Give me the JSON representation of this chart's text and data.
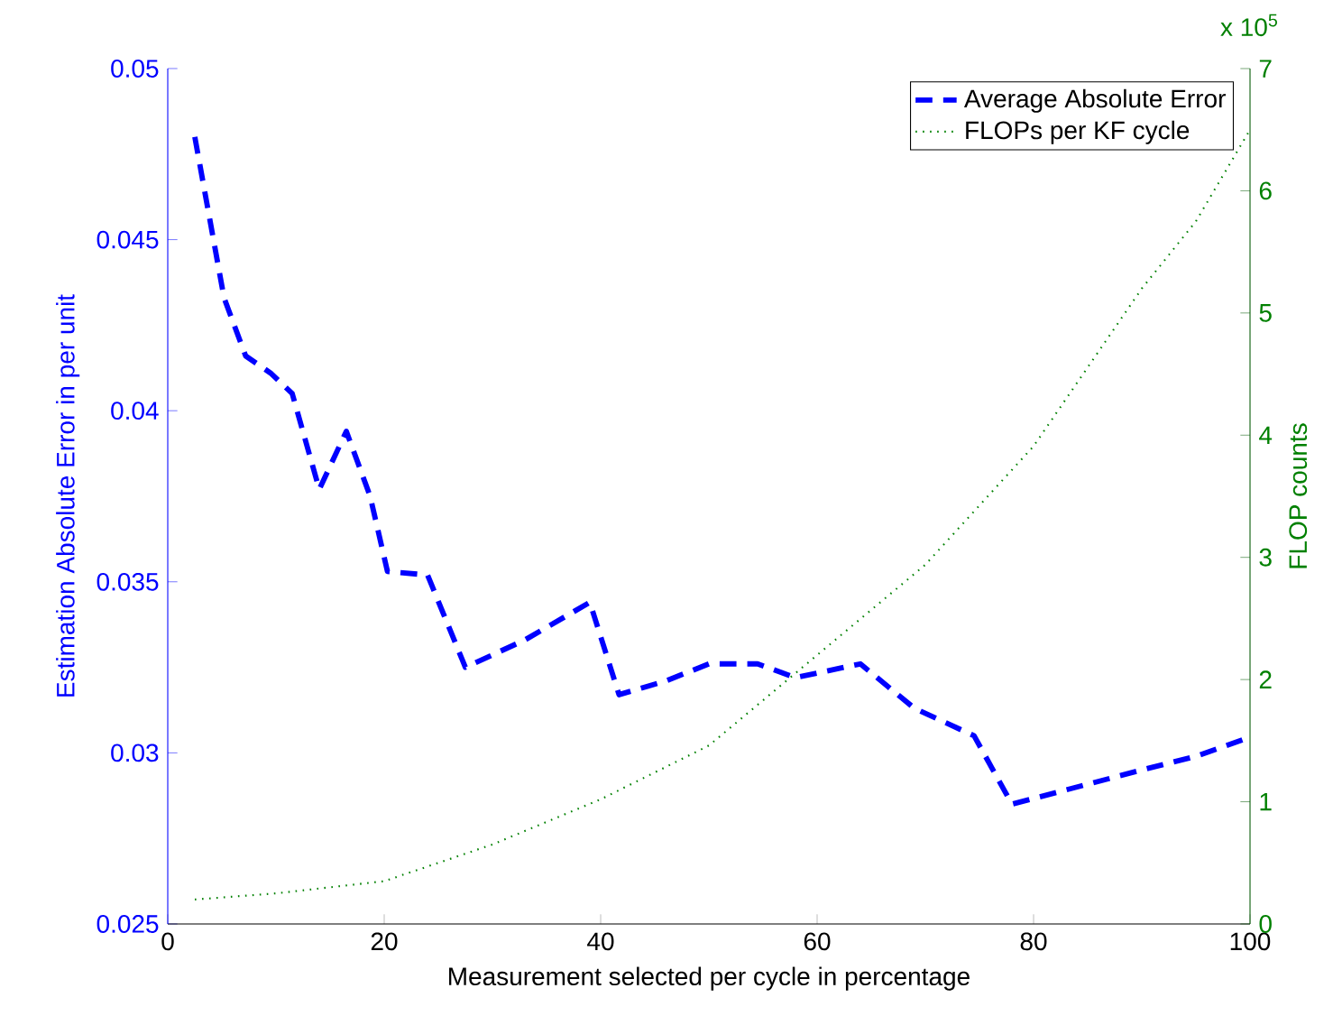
{
  "chart_data": {
    "type": "line",
    "xlabel": "Measurement selected per cycle in percentage",
    "ylabel": "Estimation Absolute Error in per unit",
    "y2label": "FLOP counts",
    "annotations": [
      "x 10$^{5}$"
    ],
    "xlim": [
      0,
      100
    ],
    "xticks": [
      0,
      20,
      40,
      60,
      80,
      100
    ],
    "ylim": [
      0.025,
      0.05
    ],
    "yticks": [
      0.025,
      0.03,
      0.035,
      0.04,
      0.045,
      0.05
    ],
    "y2lim": [
      0,
      7
    ],
    "y2ticks": [
      0,
      1,
      2,
      3,
      4,
      5,
      6,
      7
    ],
    "legend": "top right",
    "marker": "none",
    "grid": false,
    "series": [
      {
        "name": "Average Absolute Error",
        "color": "#0000ff",
        "line_style": "dashed",
        "x": [
          2.5,
          5.2,
          7.2,
          9.5,
          11.5,
          14,
          16.5,
          18.7,
          20.3,
          24,
          27.5,
          33,
          39,
          41.7,
          46,
          50,
          54.5,
          58,
          64,
          69,
          74.5,
          78,
          84,
          90,
          95,
          99.5
        ],
        "values": [
          0.048,
          0.0433,
          0.0416,
          0.0411,
          0.0405,
          0.0377,
          0.0394,
          0.0375,
          0.0353,
          0.0352,
          0.0325,
          0.0333,
          0.0344,
          0.0317,
          0.0321,
          0.0326,
          0.0326,
          0.0322,
          0.0326,
          0.0313,
          0.0305,
          0.0285,
          0.029,
          0.0295,
          0.0299,
          0.0304
        ]
      },
      {
        "name": "FLOPs per KF cycle",
        "color": "#008000",
        "line_style": "dotted",
        "axis": "y2",
        "x": [
          2.5,
          10,
          20,
          30,
          40,
          50,
          60,
          70,
          80,
          90,
          95,
          100
        ],
        "values": [
          0.2,
          0.25,
          0.35,
          0.65,
          1.02,
          1.46,
          2.2,
          2.94,
          3.91,
          5.2,
          5.75,
          6.5
        ]
      }
    ]
  }
}
